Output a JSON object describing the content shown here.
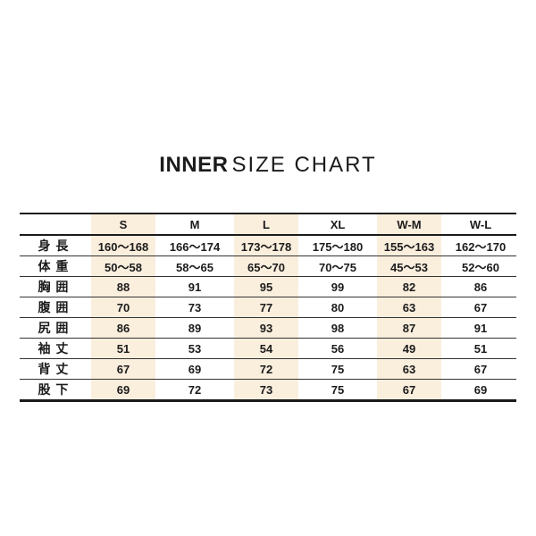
{
  "title": {
    "primary": "INNER",
    "secondary": "SIZE CHART"
  },
  "colors": {
    "background": "#ffffff",
    "text": "#1b1b1b",
    "border": "#1b1b1b",
    "highlight": "#faeedd"
  },
  "chart_data": {
    "type": "table",
    "title": "INNER SIZE CHART",
    "columns": [
      "",
      "S",
      "M",
      "L",
      "XL",
      "W-M",
      "W-L"
    ],
    "highlighted_columns": [
      "S",
      "L",
      "W-M"
    ],
    "highlighted_column_indexes": [
      1,
      3,
      5
    ],
    "rows": [
      {
        "label": "身 長",
        "values": [
          "160〜168",
          "166〜174",
          "173〜178",
          "175〜180",
          "155〜163",
          "162〜170"
        ]
      },
      {
        "label": "体 重",
        "values": [
          "50〜58",
          "58〜65",
          "65〜70",
          "70〜75",
          "45〜53",
          "52〜60"
        ]
      },
      {
        "label": "胸 囲",
        "values": [
          "88",
          "91",
          "95",
          "99",
          "82",
          "86"
        ]
      },
      {
        "label": "腹 囲",
        "values": [
          "70",
          "73",
          "77",
          "80",
          "63",
          "67"
        ]
      },
      {
        "label": "尻 囲",
        "values": [
          "86",
          "89",
          "93",
          "98",
          "87",
          "91"
        ]
      },
      {
        "label": "袖 丈",
        "values": [
          "51",
          "53",
          "54",
          "56",
          "49",
          "51"
        ]
      },
      {
        "label": "背 丈",
        "values": [
          "67",
          "69",
          "72",
          "75",
          "63",
          "67"
        ]
      },
      {
        "label": "股 下",
        "values": [
          "69",
          "72",
          "73",
          "75",
          "67",
          "69"
        ]
      }
    ]
  }
}
